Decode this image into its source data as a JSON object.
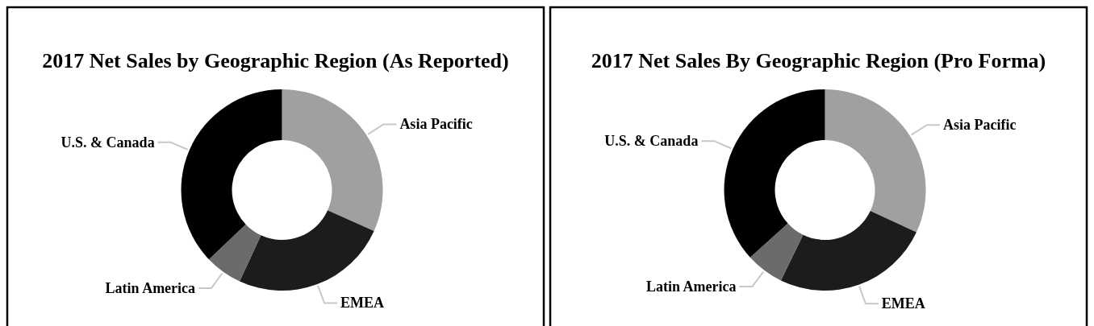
{
  "chart_data": [
    {
      "type": "donut",
      "title": "2017 Net Sales by Geographic Region (As Reported)",
      "categories": [
        "Asia Pacific",
        "EMEA",
        "Latin America",
        "U.S. & Canada"
      ],
      "values": [
        31.7,
        25.2,
        6.0,
        37.1
      ],
      "colors": [
        "#a0a0a0",
        "#1c1c1c",
        "#6b6b6b",
        "#000000"
      ]
    },
    {
      "type": "donut",
      "title": "2017 Net Sales By Geographic Region (Pro Forma)",
      "categories": [
        "Asia Pacific",
        "EMEA",
        "Latin America",
        "U.S. & Canada"
      ],
      "values": [
        31.9,
        25.3,
        6.1,
        36.7
      ],
      "colors": [
        "#a0a0a0",
        "#1c1c1c",
        "#6b6b6b",
        "#000000"
      ]
    }
  ]
}
